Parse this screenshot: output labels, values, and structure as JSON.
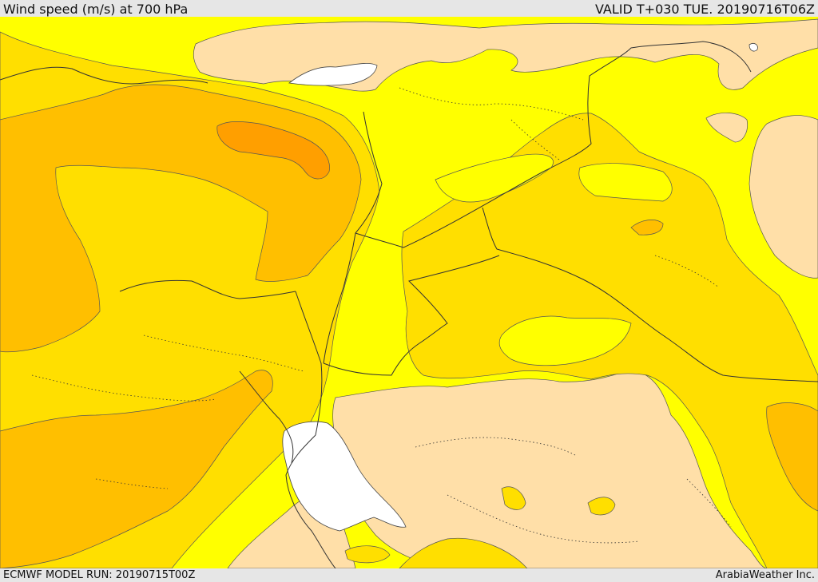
{
  "header": {
    "title": "Wind speed (m/s) at 700 hPa",
    "valid": "VALID T+030 TUE. 20190716T06Z"
  },
  "footer": {
    "model_run": "ECMWF MODEL RUN: 20190715T00Z",
    "credit": "ArabiaWeather Inc."
  },
  "map": {
    "field": "wind speed",
    "level": "700 hPa",
    "fill_colors": {
      "lightest": "#ffdfa8",
      "light": "#ffff00",
      "medium": "#ffdf00",
      "strong": "#ffbf00",
      "strongest": "#ff9f00",
      "water": "#ffffff"
    }
  }
}
